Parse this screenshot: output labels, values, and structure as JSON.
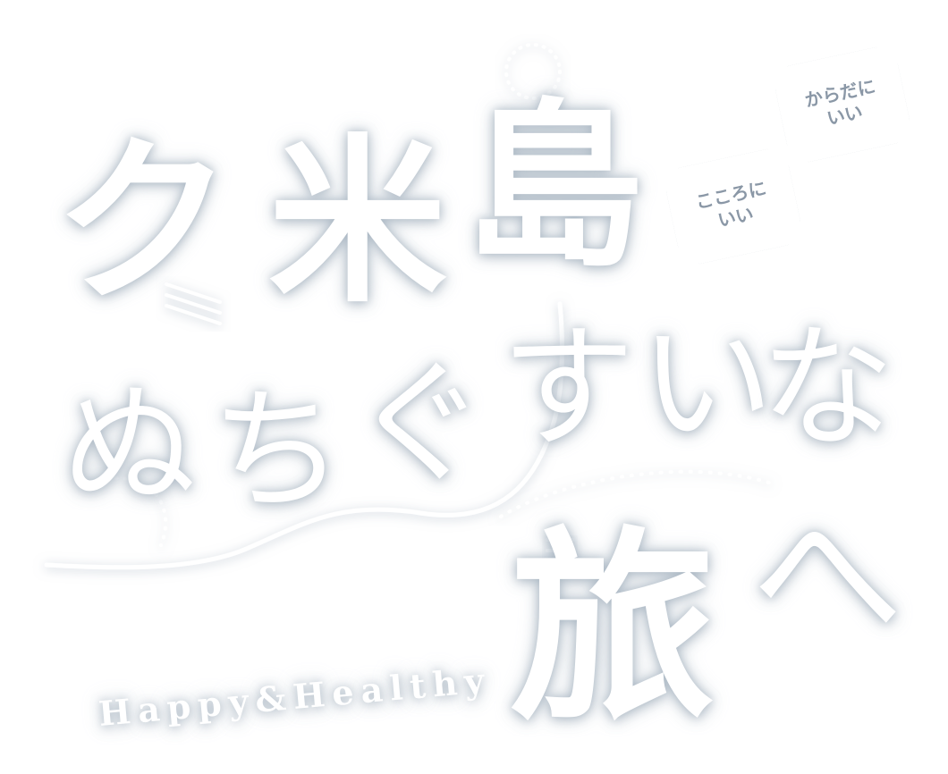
{
  "title": {
    "chars": [
      "ク",
      "米",
      "島"
    ]
  },
  "subtitle": {
    "chars": [
      "ぬ",
      "ち",
      "ぐ",
      "す",
      "い",
      "な"
    ]
  },
  "tabi": "旅",
  "he": "へ",
  "tagline": "Happy&Healthy",
  "badges": {
    "body": {
      "line1": "からだに",
      "line2": "いい"
    },
    "mind": {
      "line1": "こころに",
      "line2": "いい"
    }
  },
  "colors": {
    "glow": "#a0afbe",
    "badge_text": "#8a97a6",
    "background": "#ffffff"
  }
}
